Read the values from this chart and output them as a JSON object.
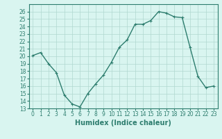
{
  "x": [
    0,
    1,
    2,
    3,
    4,
    5,
    6,
    7,
    8,
    9,
    10,
    11,
    12,
    13,
    14,
    15,
    16,
    17,
    18,
    19,
    20,
    21,
    22,
    23
  ],
  "y": [
    20.1,
    20.5,
    19.0,
    17.8,
    14.8,
    13.6,
    13.2,
    15.0,
    16.3,
    17.5,
    19.2,
    21.2,
    22.2,
    24.3,
    24.3,
    24.8,
    26.0,
    25.8,
    25.3,
    25.2,
    21.2,
    17.3,
    15.8,
    16.0
  ],
  "line_color": "#2d7d6e",
  "marker": "+",
  "marker_size": 3,
  "line_width": 1.0,
  "bg_color": "#d9f5f0",
  "grid_color": "#b0d8d0",
  "xlabel": "Humidex (Indice chaleur)",
  "xlim": [
    -0.5,
    23.5
  ],
  "ylim": [
    13,
    27
  ],
  "yticks": [
    13,
    14,
    15,
    16,
    17,
    18,
    19,
    20,
    21,
    22,
    23,
    24,
    25,
    26
  ],
  "xticks": [
    0,
    1,
    2,
    3,
    4,
    5,
    6,
    7,
    8,
    9,
    10,
    11,
    12,
    13,
    14,
    15,
    16,
    17,
    18,
    19,
    20,
    21,
    22,
    23
  ],
  "tick_label_size": 5.5,
  "xlabel_size": 7.0
}
